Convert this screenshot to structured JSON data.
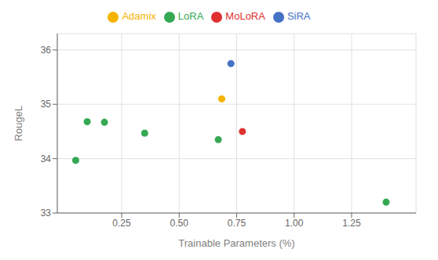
{
  "chart_data": {
    "type": "scatter",
    "x_label": "Trainable Parameters (%)",
    "y_label": "RougeL",
    "series": [
      {
        "name": "SiRA",
        "color": "#4472C4",
        "x": [
          0.725
        ],
        "values": [
          35.75
        ]
      },
      {
        "name": "MoLoRA",
        "color": "#E03030",
        "x": [
          0.775
        ],
        "values": [
          34.5
        ]
      },
      {
        "name": "Adamix",
        "color": "#F4B400",
        "x": [
          0.685
        ],
        "values": [
          35.1
        ]
      },
      {
        "name": "LoRA",
        "color": "#34A853",
        "x": [
          0.05,
          0.1,
          0.175,
          0.35,
          0.67,
          1.4
        ],
        "values": [
          33.97,
          34.68,
          34.67,
          34.47,
          34.35,
          33.2
        ]
      }
    ],
    "xlim": [
      -0.03,
      1.53
    ],
    "ylim": [
      33.0,
      36.3
    ],
    "xticks": [
      0.25,
      {
        "value": 0.5,
        "label": "0.50"
      },
      0.75,
      {
        "value": 1.0,
        "label": "1.00"
      },
      1.25
    ],
    "yticks": [
      33,
      34,
      35,
      36
    ],
    "grid": true,
    "legend": "top"
  }
}
